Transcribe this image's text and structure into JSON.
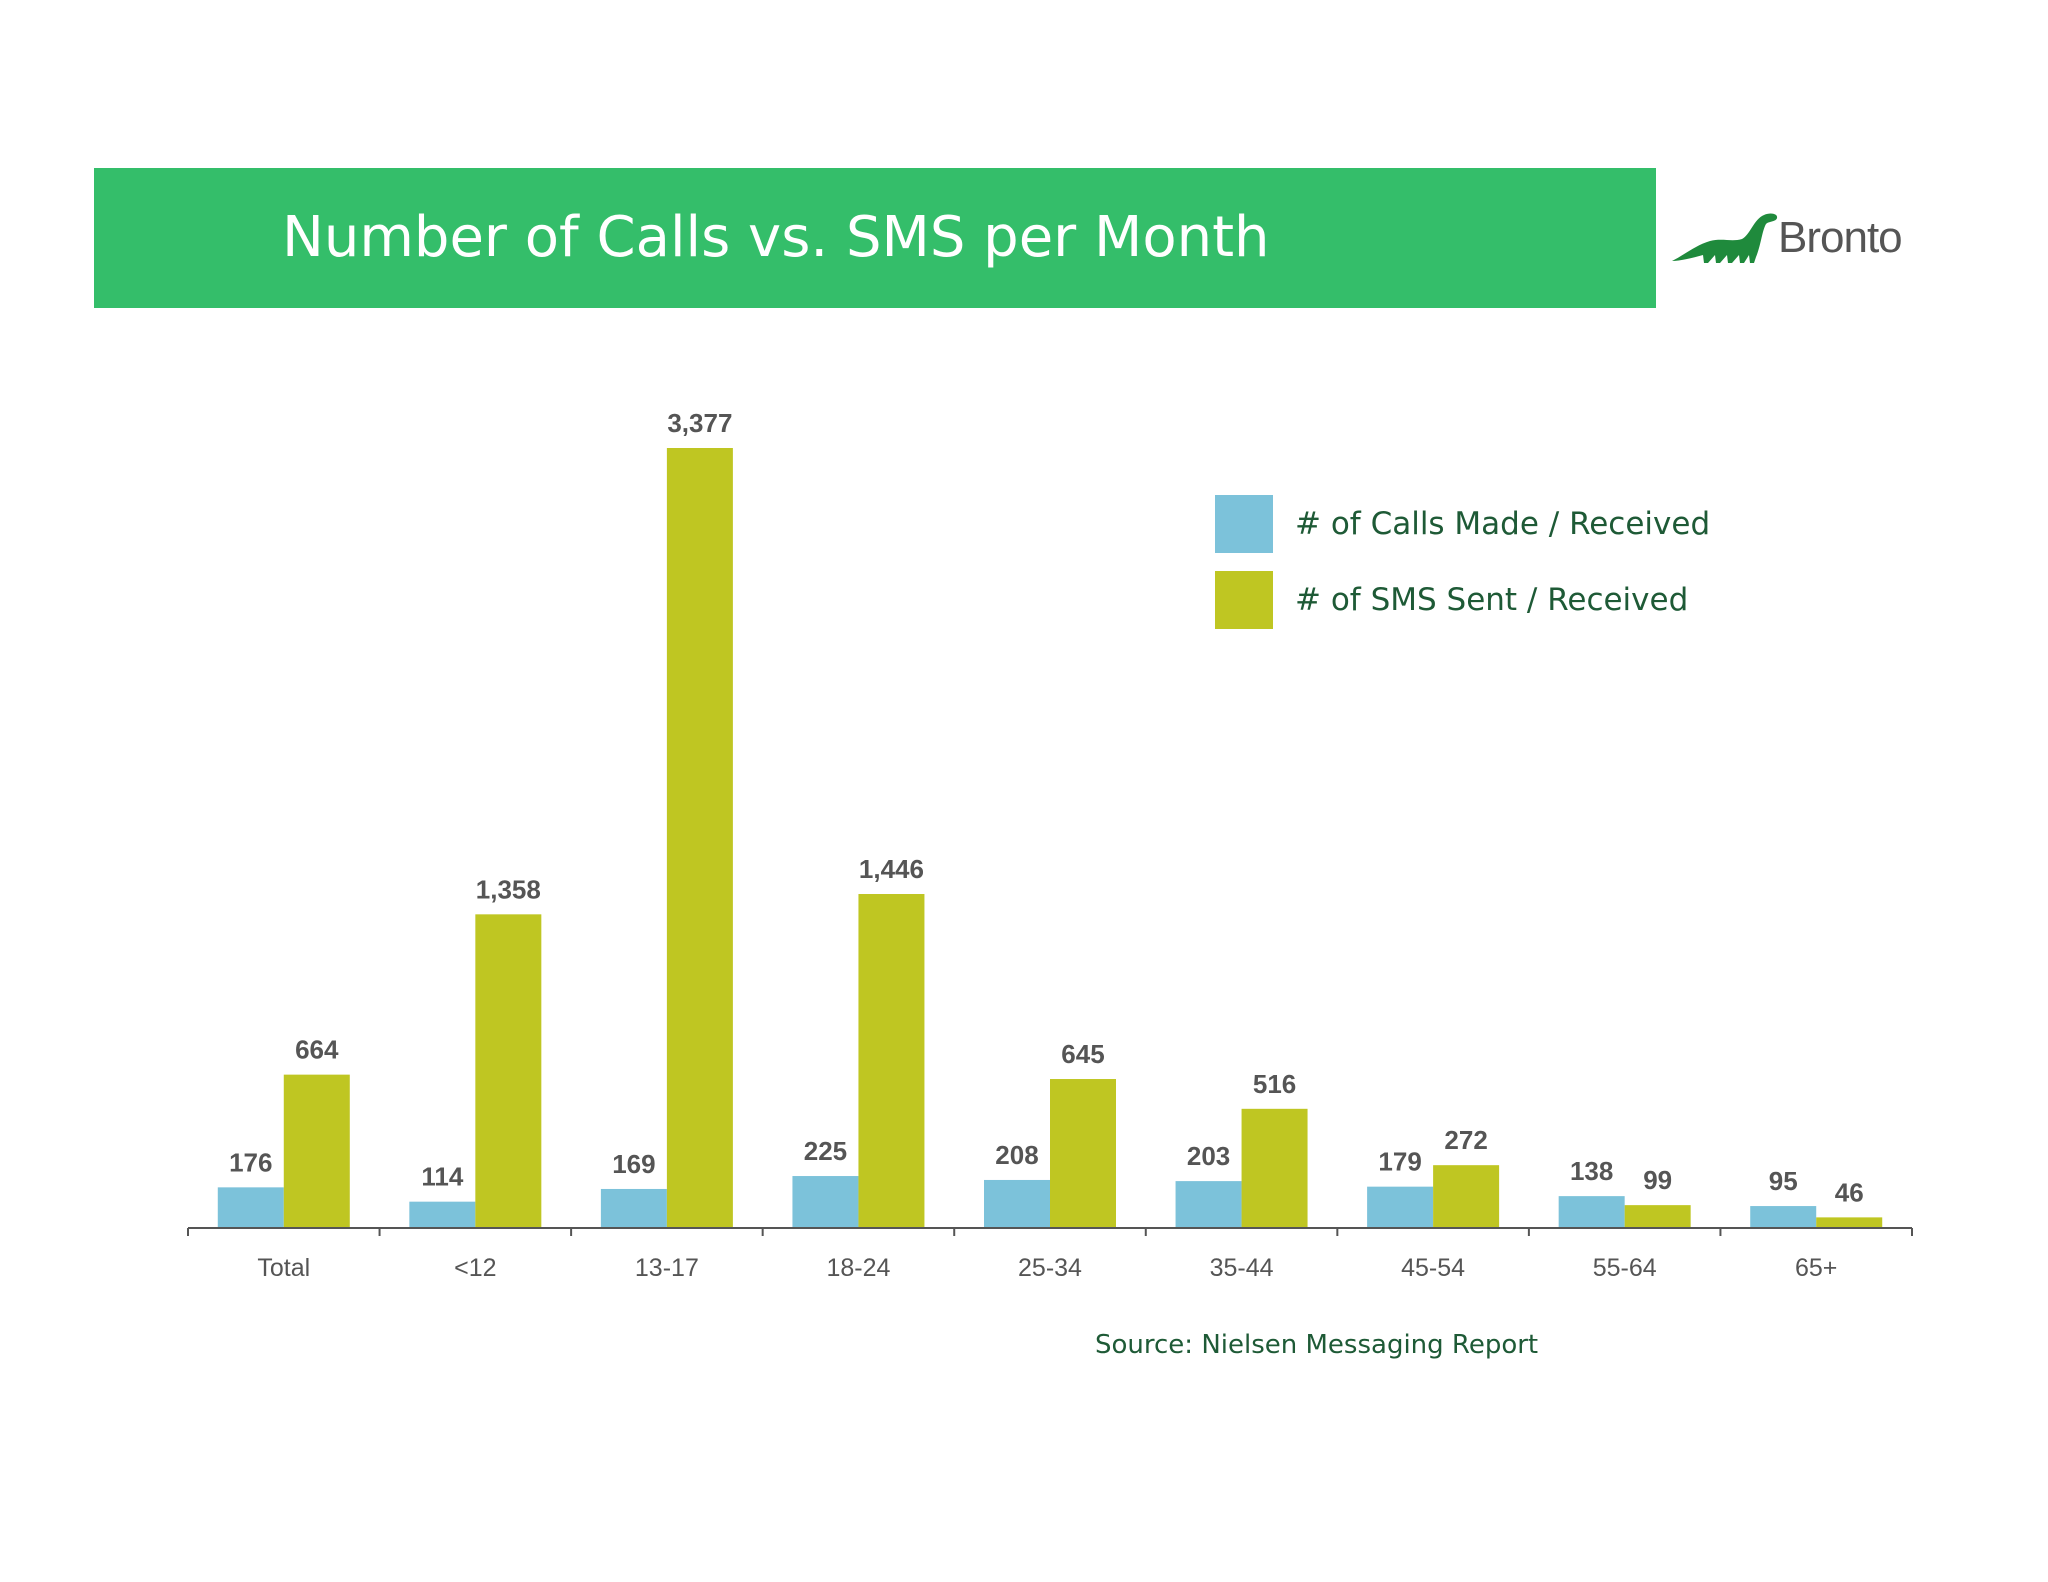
{
  "header": {
    "title": "Number of Calls vs. SMS per Month",
    "logo_text": "Bronto",
    "banner_color": "#34be6a"
  },
  "legend": [
    {
      "label": "# of Calls Made / Received",
      "color": "#7cc2da"
    },
    {
      "label": "# of SMS Sent / Received",
      "color": "#bfc622"
    }
  ],
  "source": "Source: Nielsen Messaging Report",
  "chart_data": {
    "type": "bar",
    "title": "Number of Calls vs. SMS per Month",
    "categories": [
      "Total",
      "<12",
      "13-17",
      "18-24",
      "25-34",
      "35-44",
      "45-54",
      "55-64",
      "65+"
    ],
    "series": [
      {
        "name": "# of Calls Made / Received",
        "color": "#7cc2da",
        "values": [
          176,
          114,
          169,
          225,
          208,
          203,
          179,
          138,
          95
        ],
        "labels": [
          "176",
          "114",
          "169",
          "225",
          "208",
          "203",
          "179",
          "138",
          "95"
        ]
      },
      {
        "name": "# of SMS Sent / Received",
        "color": "#bfc622",
        "values": [
          664,
          1358,
          3377,
          1446,
          645,
          516,
          272,
          99,
          46
        ],
        "labels": [
          "664",
          "1,358",
          "3,377",
          "1,446",
          "645",
          "516",
          "272",
          "99",
          "46"
        ]
      }
    ],
    "xlabel": "",
    "ylabel": "",
    "ylim": [
      0,
      3377
    ],
    "grid": false,
    "legend_position": "top-right"
  }
}
